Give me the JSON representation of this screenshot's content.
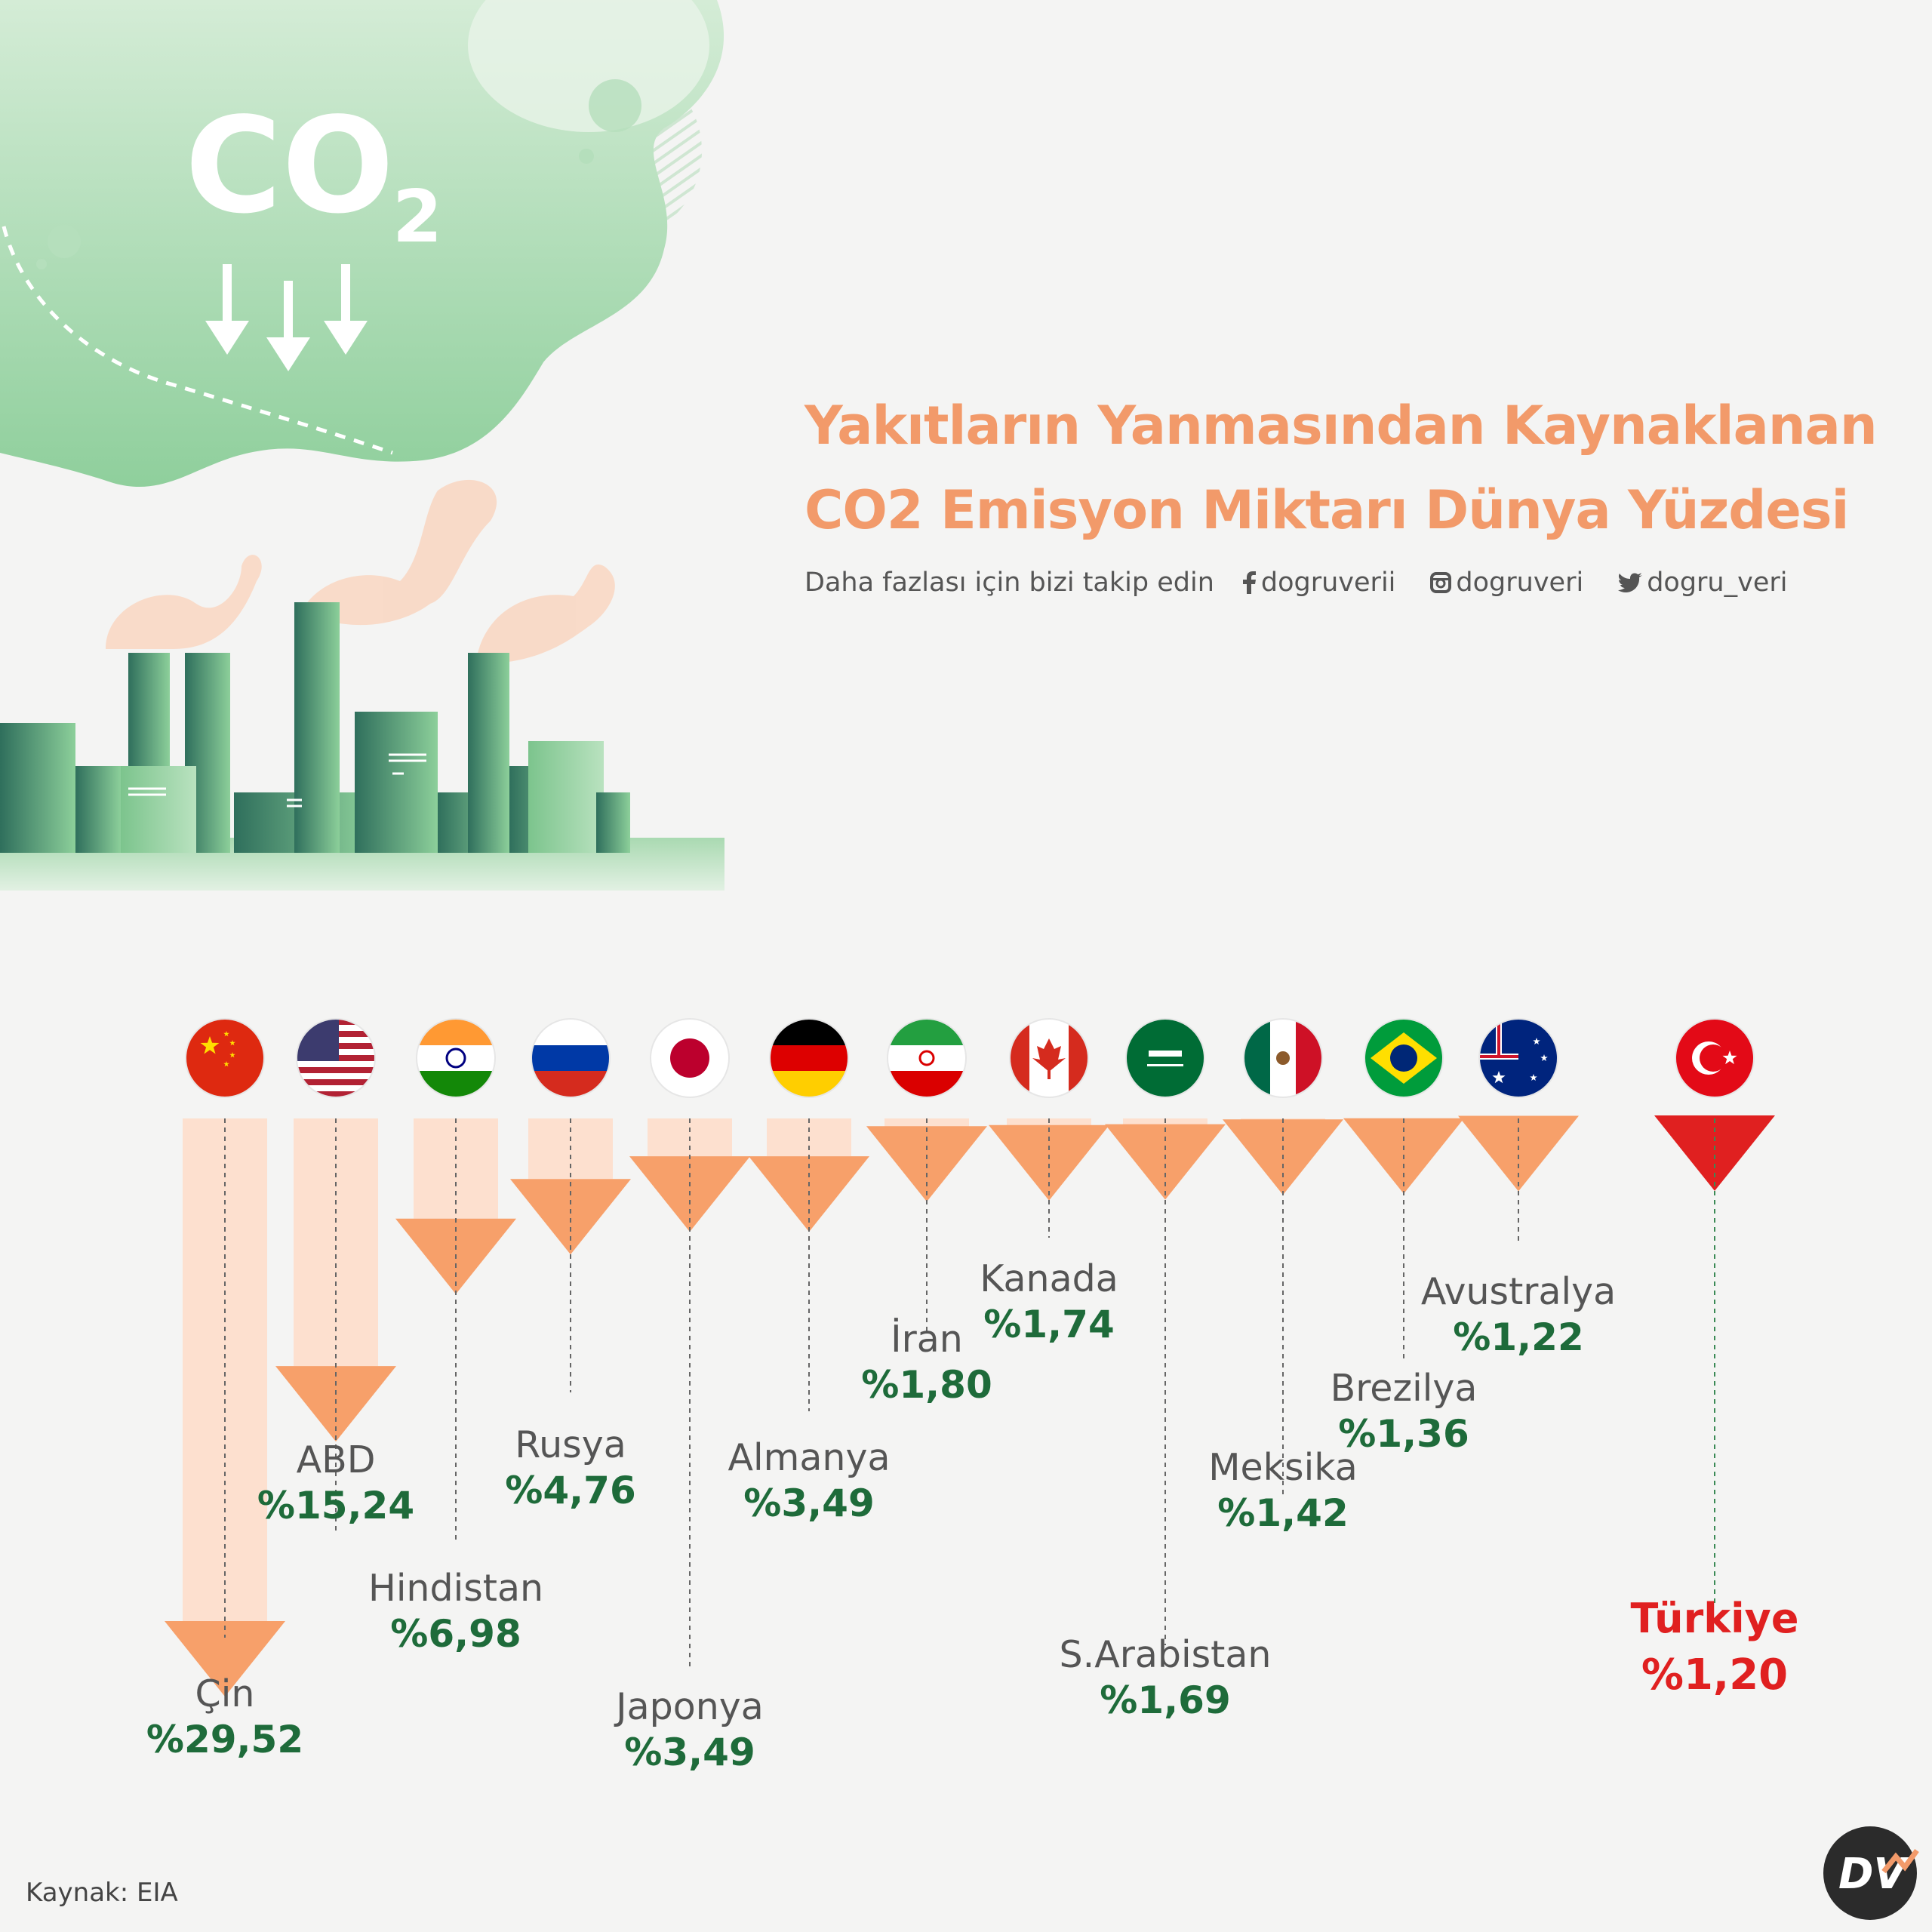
{
  "header": {
    "title_line1": "Yakıtların Yanmasından Kaynaklanan",
    "title_line2": "CO2 Emisyon Miktarı Dünya Yüzdesi",
    "follow_text": "Daha fazlası için bizi takip edin",
    "facebook": "dogruverii",
    "instagram": "dogruveri",
    "twitter": "dogru_veri"
  },
  "illustration": {
    "co2_label": "CO",
    "co2_sub": "2"
  },
  "footer": {
    "source": "Kaynak: EIA",
    "logo": "DV"
  },
  "colors": {
    "accent": "#f29a6a",
    "value_green": "#1e6b3a",
    "highlight_red": "#e02020",
    "arrow_orange": "#f7a06a",
    "arrow_stem": "#fde0cf",
    "cloud_green": "#9fd3a8"
  },
  "chart_data": {
    "type": "bar",
    "orientation": "downward-arrows",
    "categories": [
      "Çin",
      "ABD",
      "Hindistan",
      "Rusya",
      "Japonya",
      "Almanya",
      "İran",
      "Kanada",
      "S.Arabistan",
      "Meksika",
      "Brezilya",
      "Avustralya",
      "Türkiye"
    ],
    "values": [
      29.52,
      15.24,
      6.98,
      4.76,
      3.49,
      3.49,
      1.8,
      1.74,
      1.69,
      1.42,
      1.36,
      1.22,
      1.2
    ],
    "labels": [
      "%29,52",
      "%15,24",
      "%6,98",
      "%4,76",
      "%3,49",
      "%3,49",
      "%1,80",
      "%1,74",
      "%1,69",
      "%1,42",
      "%1,36",
      "%1,22",
      "%1,20"
    ],
    "flags": [
      "china-flag",
      "usa-flag",
      "india-flag",
      "russia-flag",
      "japan-flag",
      "germany-flag",
      "iran-flag",
      "canada-flag",
      "saudi-flag",
      "mexico-flag",
      "brazil-flag",
      "australia-flag",
      "turkey-flag"
    ],
    "highlight": "Türkiye",
    "unit": "%"
  }
}
